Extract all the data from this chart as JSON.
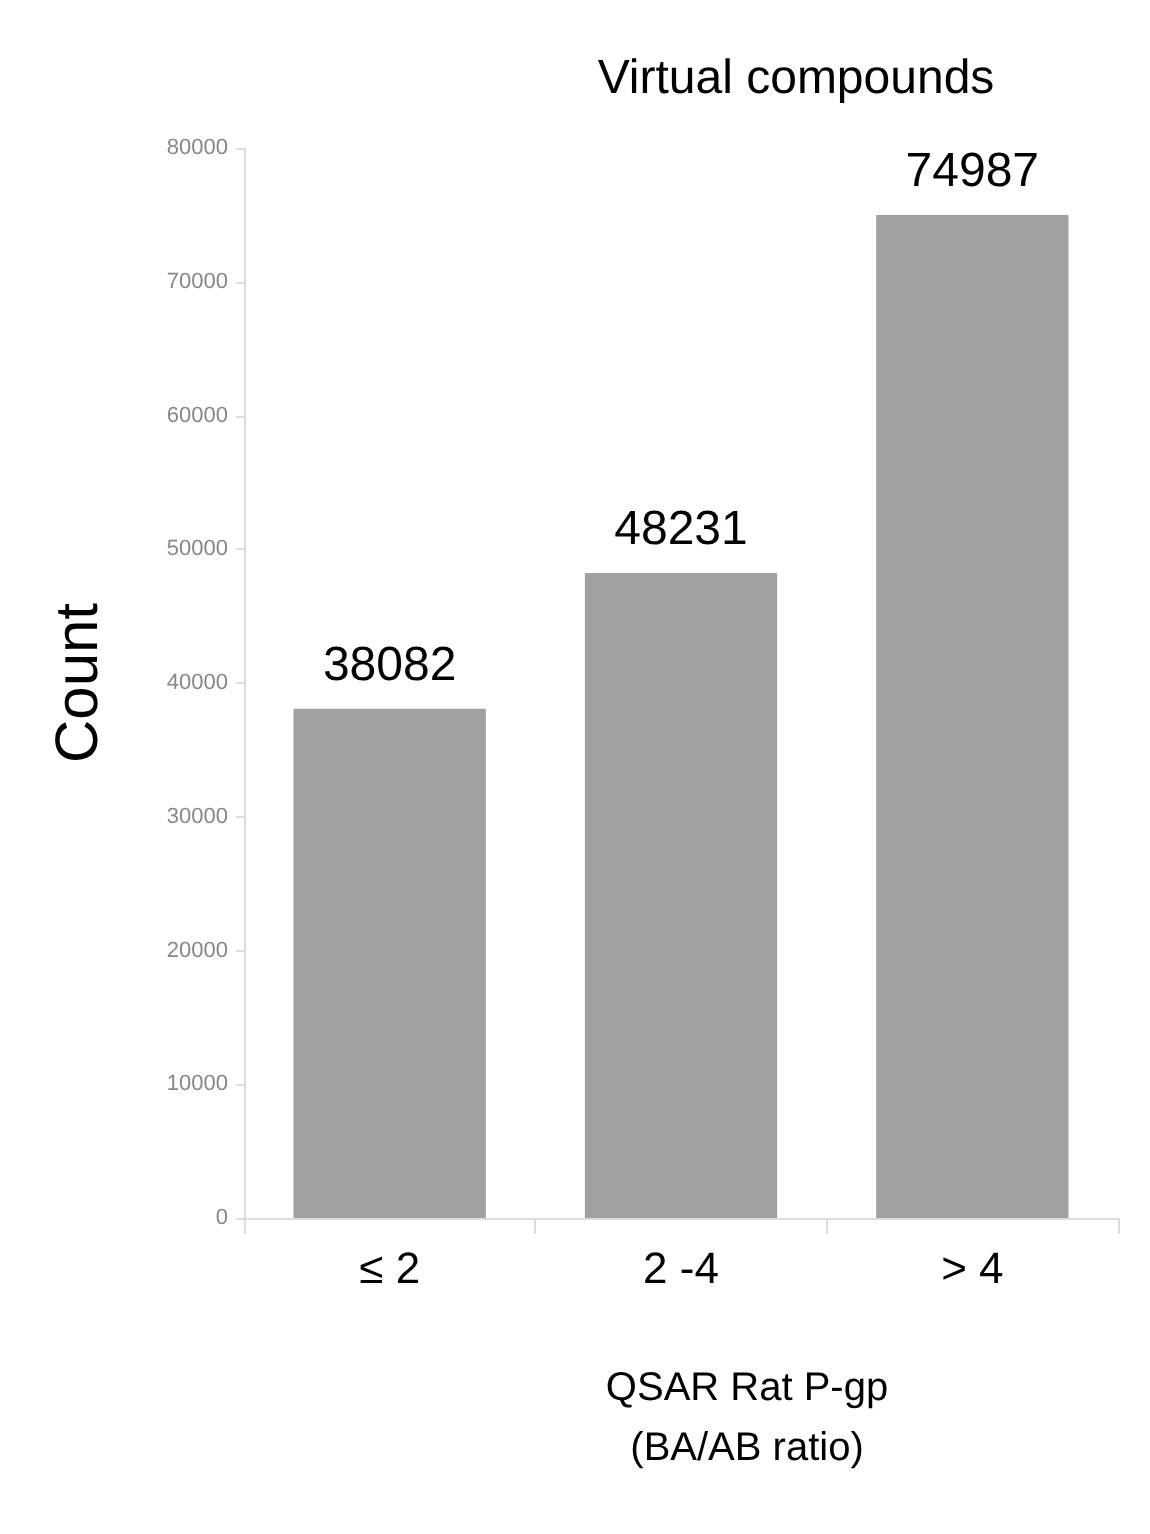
{
  "chart_data": {
    "type": "bar",
    "title": "Virtual compounds",
    "xlabel": "QSAR Rat P-gp\n(BA/AB ratio)",
    "ylabel": "Count",
    "categories": [
      "≤ 2",
      "2 -4",
      "> 4"
    ],
    "values": [
      38082,
      48231,
      74987
    ],
    "color": "#a0a0a0",
    "ylim": [
      0,
      80000
    ],
    "yticks": [
      0,
      10000,
      20000,
      30000,
      40000,
      50000,
      60000,
      70000,
      80000
    ],
    "data_labels": true,
    "grid": false
  }
}
